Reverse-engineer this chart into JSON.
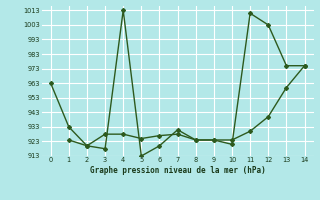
{
  "xlabel": "Graphe pression niveau de la mer (hPa)",
  "background_color": "#b3e8e8",
  "grid_color": "#ffffff",
  "line_color": "#2d5a1e",
  "xlim": [
    -0.5,
    14.5
  ],
  "ylim": [
    913,
    1016
  ],
  "ytick_labels": [
    "913",
    "923",
    "933",
    "943",
    "953",
    "963",
    "973",
    "983",
    "993",
    "1003",
    "1013"
  ],
  "ytick_vals": [
    913,
    923,
    933,
    943,
    953,
    963,
    973,
    983,
    993,
    1003,
    1013
  ],
  "xtick_vals": [
    0,
    1,
    2,
    3,
    4,
    5,
    6,
    7,
    8,
    9,
    10,
    11,
    12,
    13,
    14
  ],
  "series1_x": [
    0,
    1,
    2,
    3,
    4,
    5,
    6,
    7,
    8,
    9,
    10,
    11,
    12,
    13,
    14
  ],
  "series1_y": [
    963,
    933,
    920,
    918,
    1013,
    913,
    920,
    931,
    924,
    924,
    921,
    1011,
    1003,
    975,
    975
  ],
  "series2_x": [
    1,
    2,
    3,
    4,
    5,
    6,
    7,
    8,
    9,
    10,
    11,
    12,
    13,
    14
  ],
  "series2_y": [
    924,
    920,
    928,
    928,
    925,
    927,
    928,
    924,
    924,
    924,
    930,
    940,
    960,
    975
  ]
}
